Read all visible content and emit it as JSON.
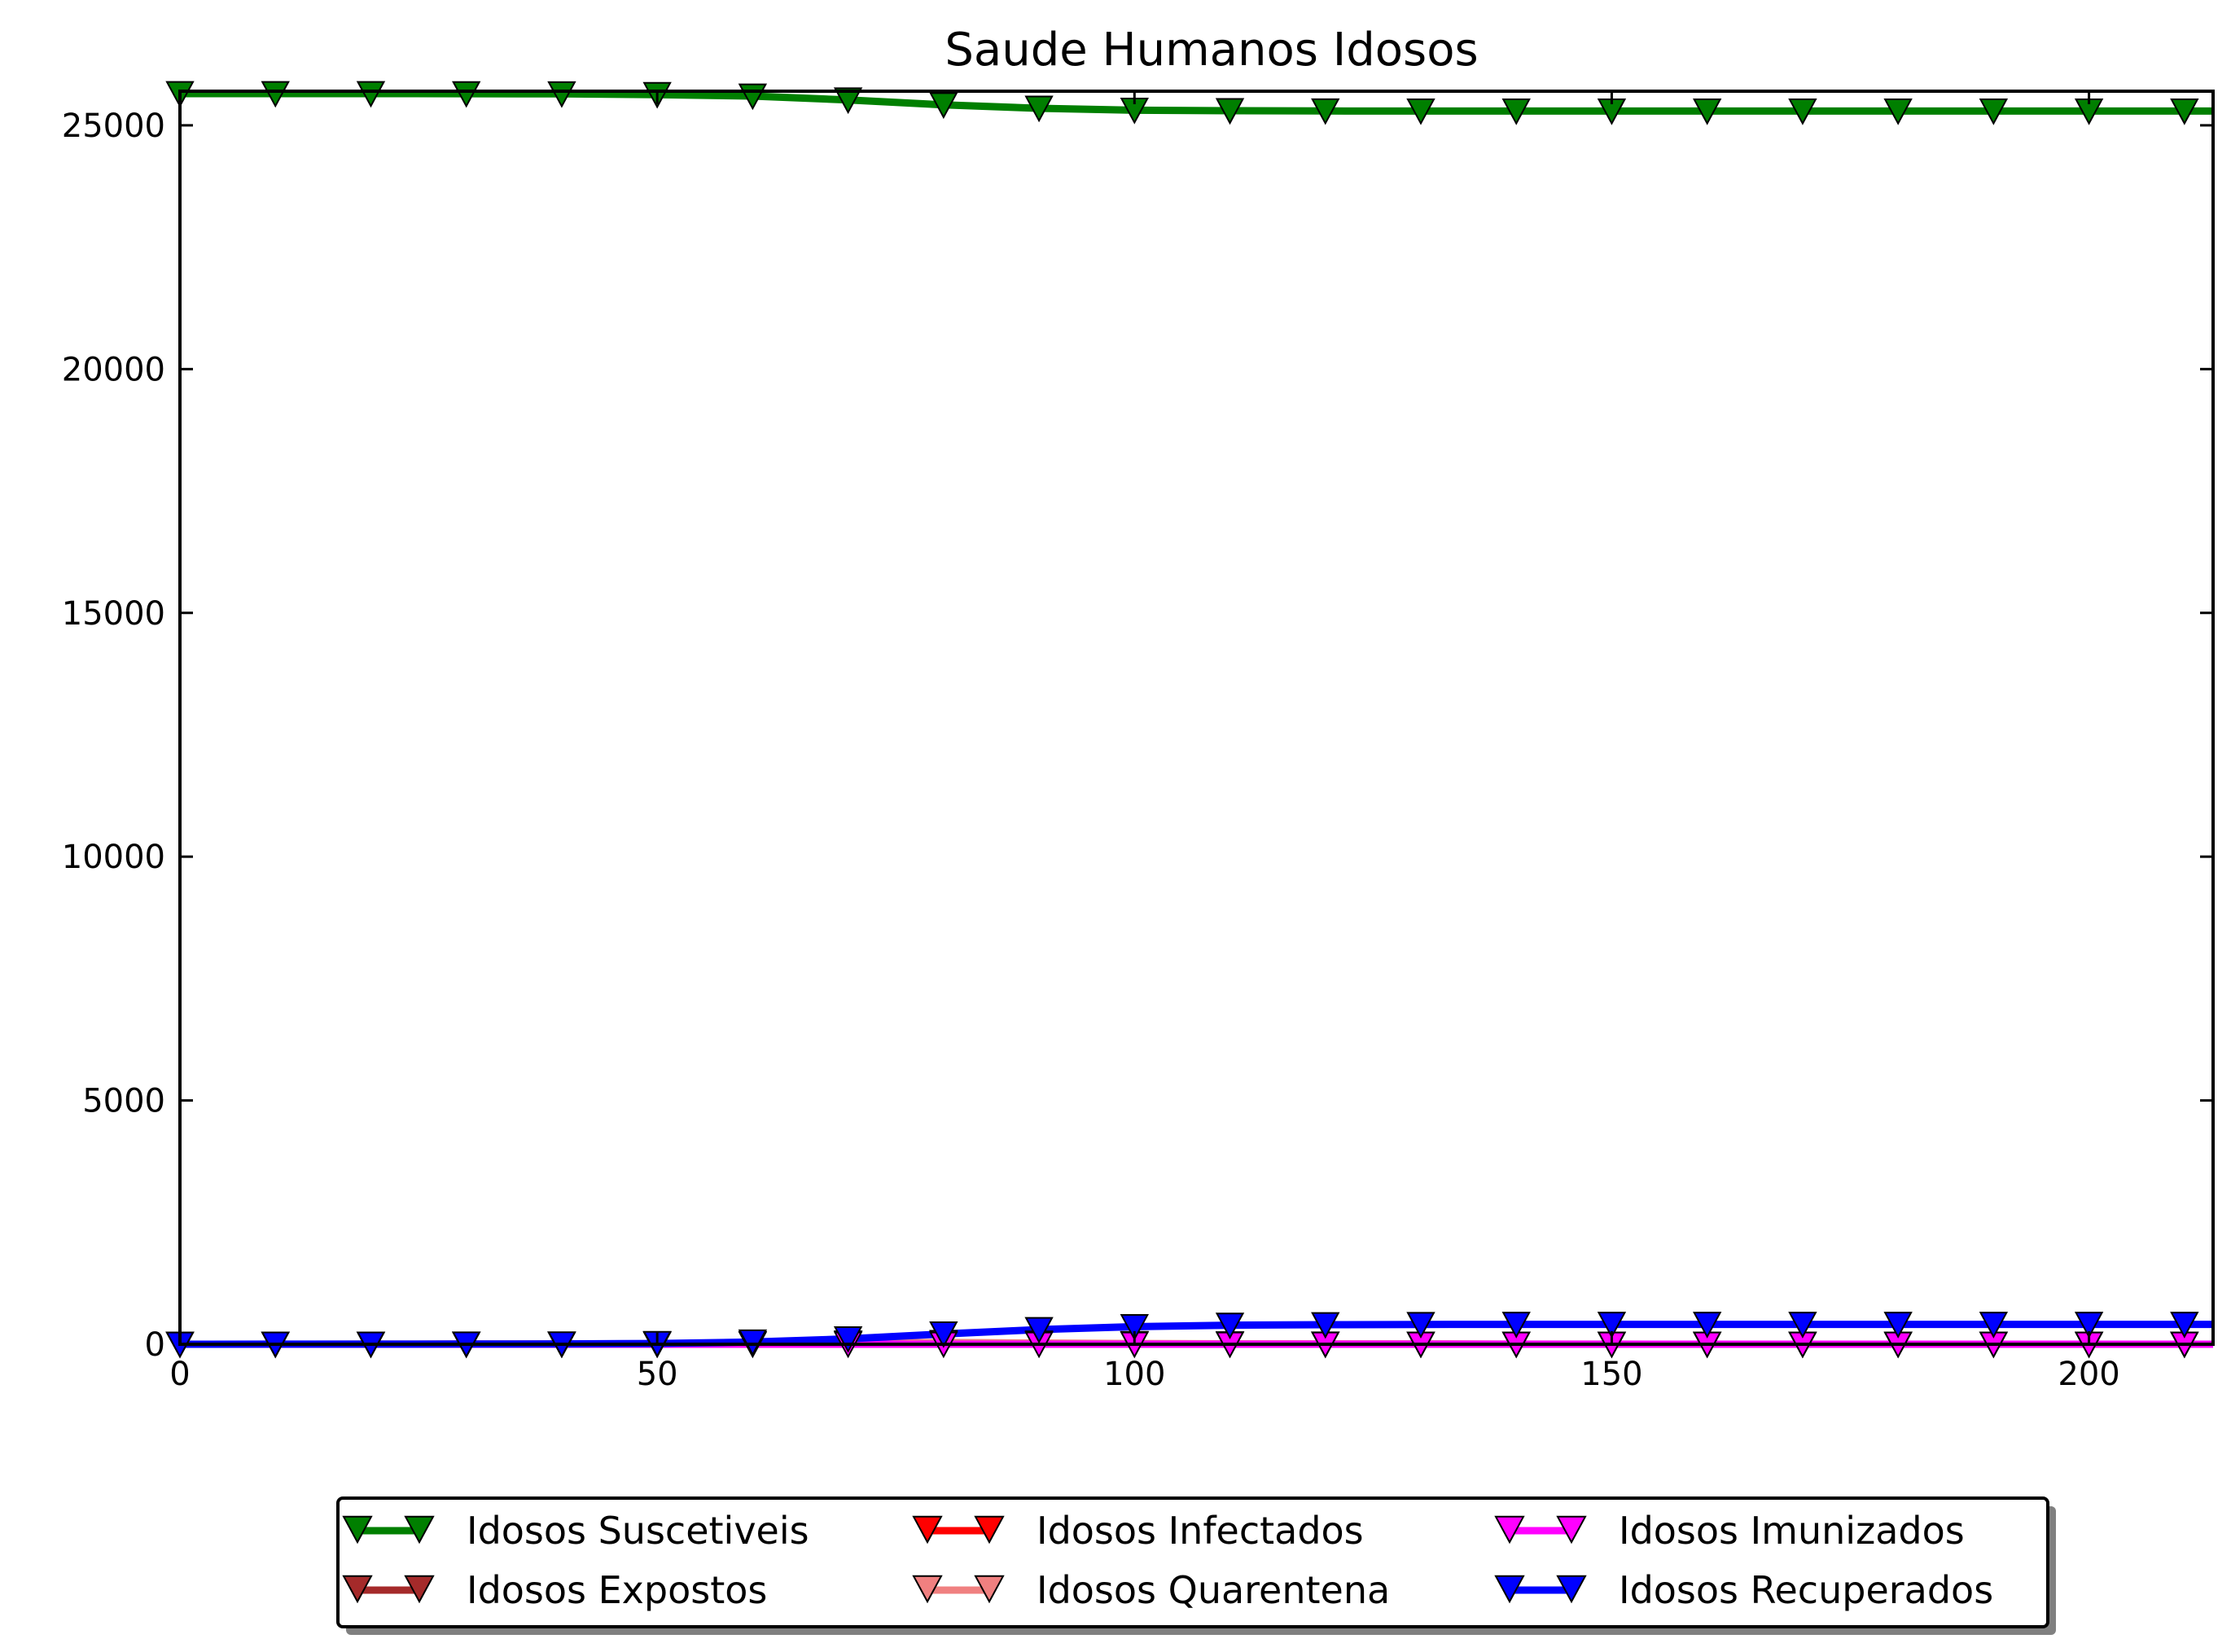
{
  "chart_data": {
    "type": "line",
    "title": "Saude Humanos Idosos",
    "xlabel": "",
    "ylabel": "",
    "xlim": [
      0,
      213
    ],
    "ylim": [
      0,
      25700
    ],
    "xticks": [
      0,
      50,
      100,
      150,
      200
    ],
    "yticks": [
      0,
      5000,
      10000,
      15000,
      20000,
      25000
    ],
    "grid": false,
    "legend_position": "bottom-center",
    "x": [
      0,
      10,
      20,
      30,
      40,
      50,
      60,
      70,
      80,
      90,
      100,
      110,
      120,
      130,
      140,
      150,
      160,
      170,
      180,
      190,
      200,
      210
    ],
    "series": [
      {
        "name": "Idosos Suscetiveis",
        "color": "#007f00",
        "values": [
          25650,
          25650,
          25650,
          25648,
          25645,
          25630,
          25600,
          25520,
          25420,
          25350,
          25310,
          25300,
          25295,
          25293,
          25292,
          25292,
          25292,
          25292,
          25292,
          25292,
          25292,
          25292
        ]
      },
      {
        "name": "Idosos Expostos",
        "color": "#a52a2a",
        "values": [
          0,
          0,
          1,
          1,
          2,
          4,
          8,
          14,
          12,
          8,
          4,
          2,
          1,
          1,
          0,
          0,
          0,
          0,
          0,
          0,
          0,
          0
        ]
      },
      {
        "name": "Idosos Infectados",
        "color": "#ff0000",
        "values": [
          0,
          0,
          0,
          1,
          2,
          4,
          8,
          14,
          16,
          10,
          6,
          3,
          1,
          1,
          0,
          0,
          0,
          0,
          0,
          0,
          0,
          0
        ]
      },
      {
        "name": "Idosos Quarentena",
        "color": "#f08080",
        "values": [
          0,
          0,
          0,
          1,
          2,
          5,
          12,
          25,
          35,
          25,
          15,
          8,
          4,
          2,
          1,
          1,
          0,
          0,
          0,
          0,
          0,
          0
        ]
      },
      {
        "name": "Idosos Imunizados",
        "color": "#ff00ff",
        "values": [
          0,
          0,
          0,
          0,
          0,
          0,
          0,
          0,
          0,
          0,
          0,
          0,
          0,
          0,
          0,
          0,
          0,
          0,
          0,
          0,
          0,
          0
        ]
      },
      {
        "name": "Idosos Recuperados",
        "color": "#0000ff",
        "values": [
          0,
          1,
          2,
          3,
          6,
          15,
          45,
          110,
          210,
          300,
          360,
          390,
          400,
          405,
          408,
          408,
          408,
          408,
          408,
          408,
          408,
          408
        ]
      }
    ]
  }
}
